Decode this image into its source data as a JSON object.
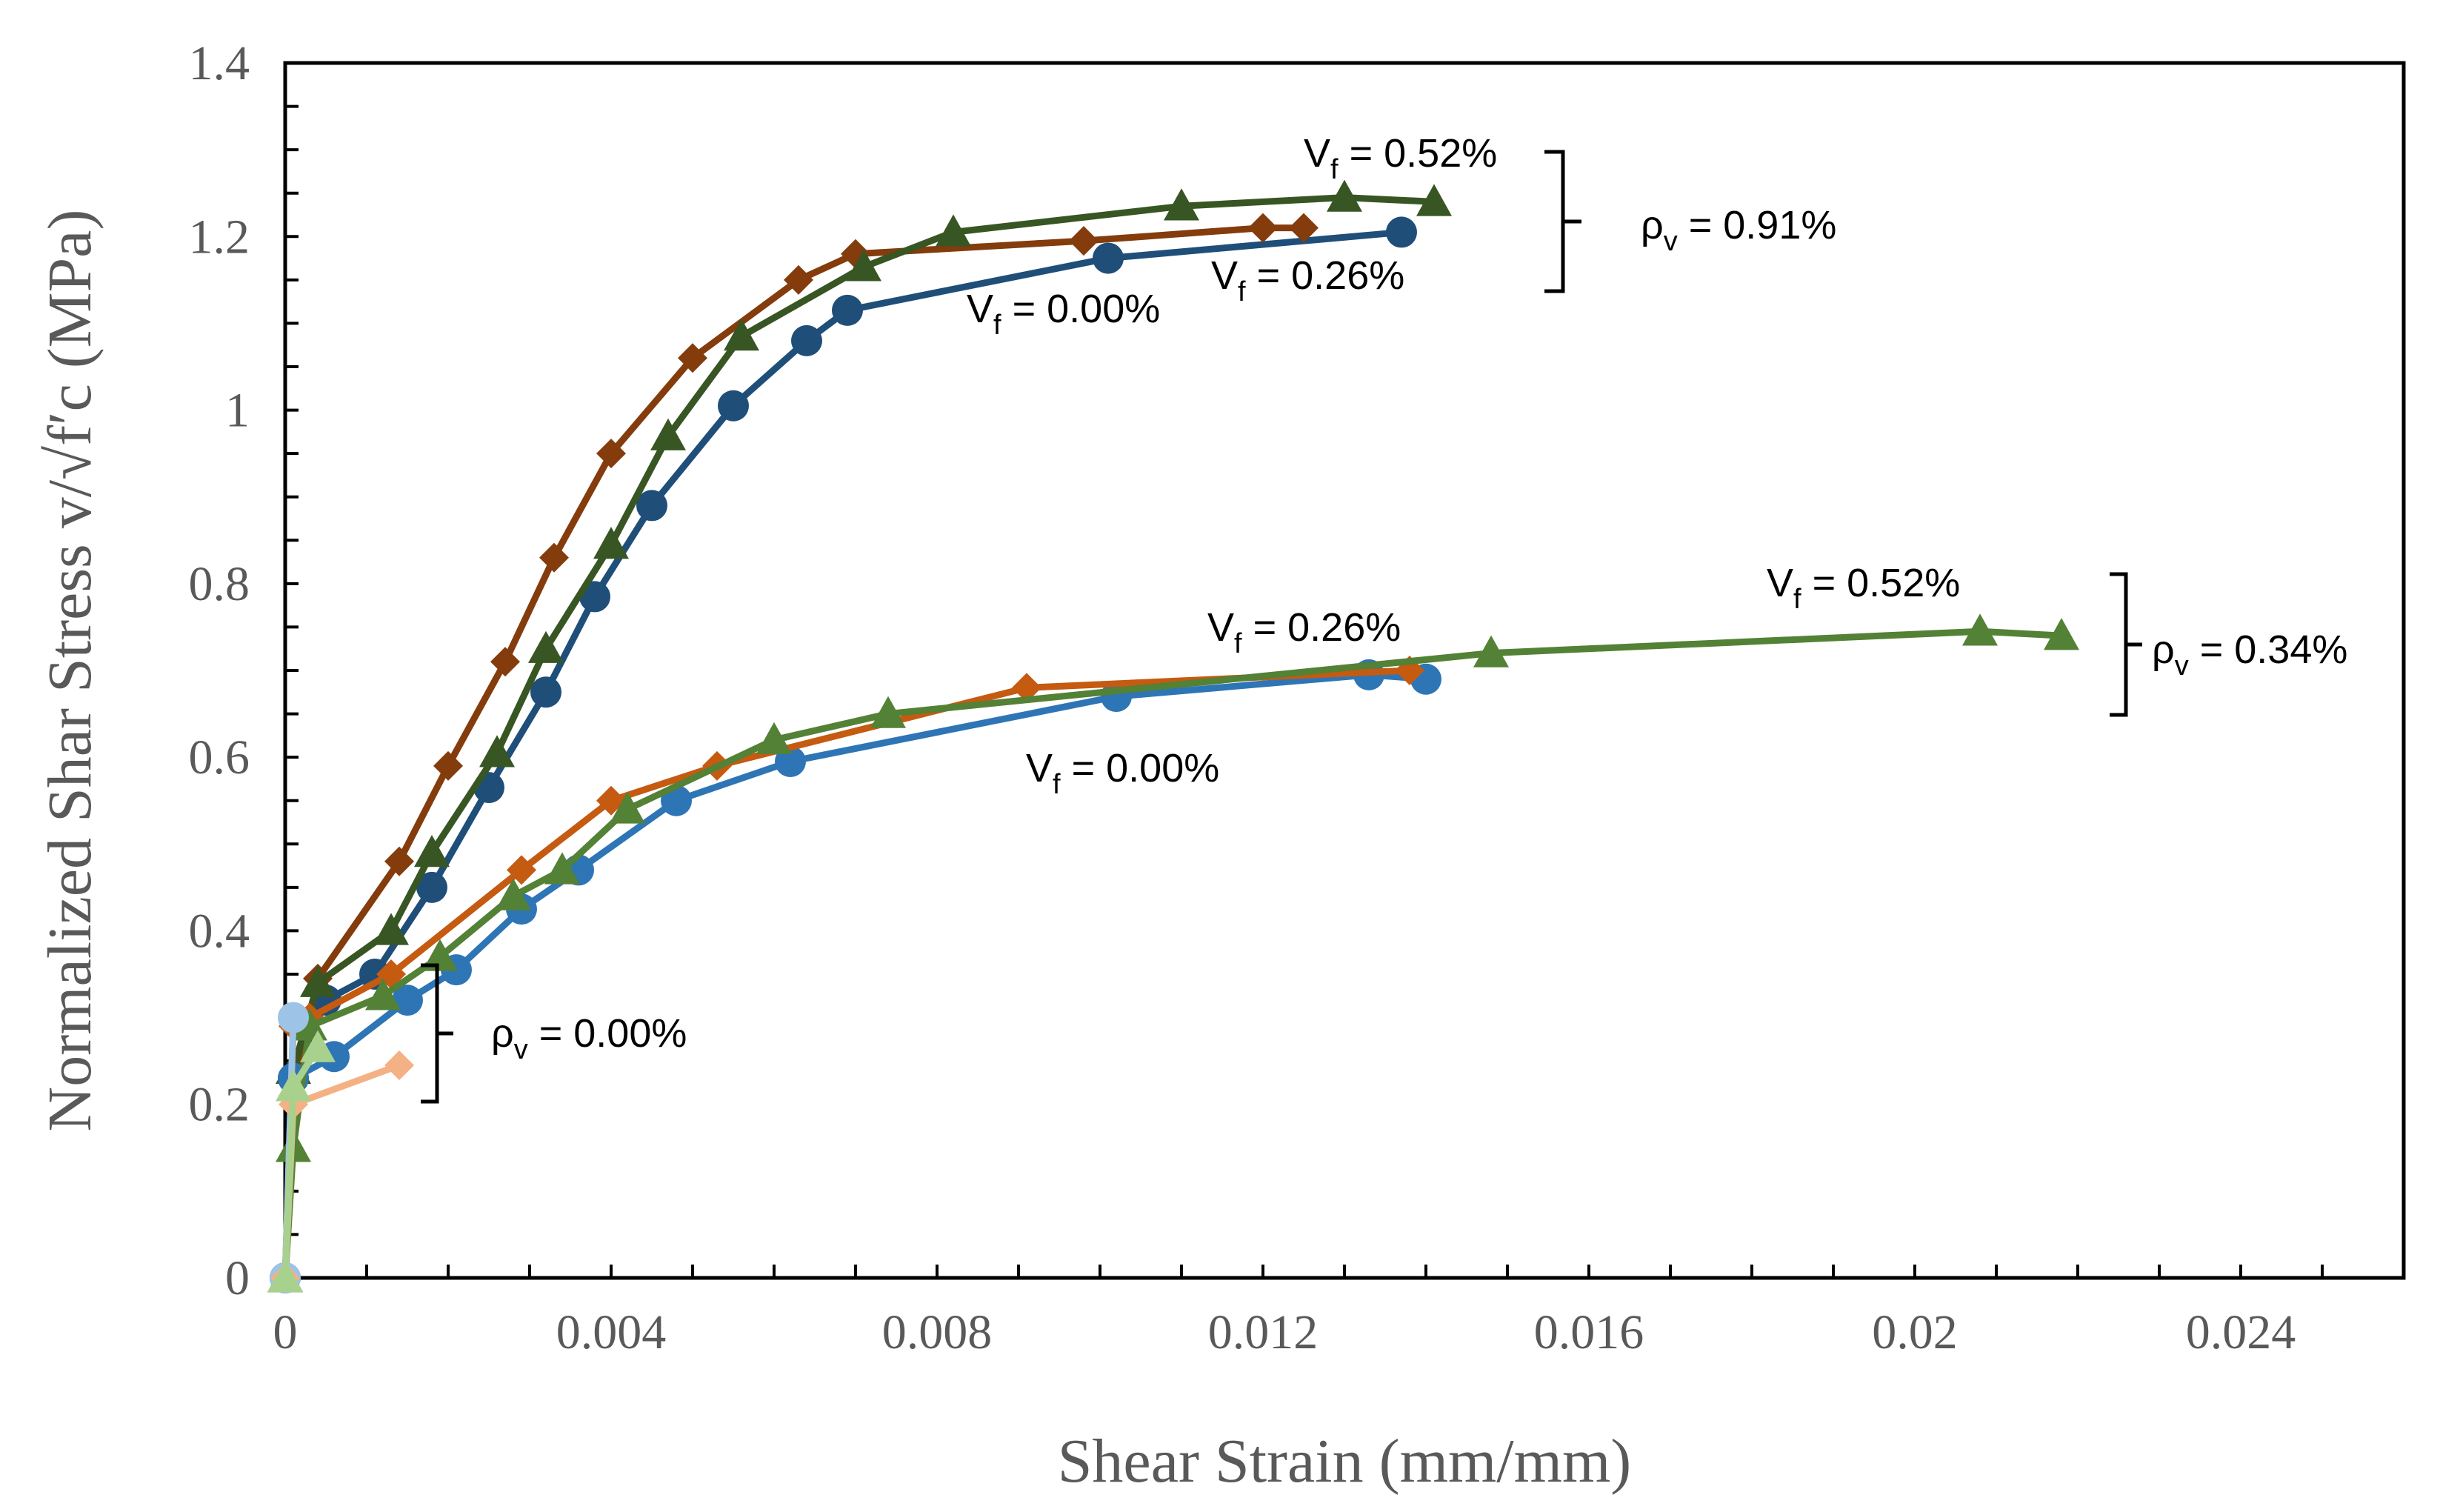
{
  "chart_data": {
    "type": "line",
    "xlabel": "Shear Strain (mm/mm)",
    "ylabel": "Normalized Shar Stress v/√f′c (MPa)",
    "xlim": [
      0,
      0.026
    ],
    "ylim": [
      0,
      1.4
    ],
    "xticks": [
      "0",
      "0.004",
      "0.008",
      "0.012",
      "0.016",
      "0.02",
      "0.024"
    ],
    "yticks": [
      "0",
      "0.2",
      "0.4",
      "0.6",
      "0.8",
      "1",
      "1.2",
      "1.4"
    ],
    "grid": false,
    "legend": "none",
    "series": [
      {
        "rho_v": "0.91%",
        "vf": "0.00%",
        "marker": "circle",
        "color": "#1F4E79",
        "x": [
          0,
          0.0001,
          0.0005,
          0.0011,
          0.0018,
          0.0025,
          0.0032,
          0.0038,
          0.0045,
          0.0055,
          0.0064,
          0.0069,
          0.0101,
          0.0137
        ],
        "y": [
          0,
          0.23,
          0.32,
          0.35,
          0.45,
          0.565,
          0.675,
          0.785,
          0.89,
          1.005,
          1.08,
          1.115,
          1.175,
          1.205
        ]
      },
      {
        "rho_v": "0.91%",
        "vf": "0.26%",
        "marker": "diamond",
        "color": "#843C0C",
        "x": [
          0,
          0.0001,
          0.0004,
          0.0014,
          0.002,
          0.0027,
          0.0033,
          0.004,
          0.005,
          0.0063,
          0.007,
          0.0098,
          0.012,
          0.0125
        ],
        "y": [
          0,
          0.21,
          0.345,
          0.48,
          0.59,
          0.71,
          0.83,
          0.95,
          1.06,
          1.15,
          1.18,
          1.195,
          1.21,
          1.21
        ]
      },
      {
        "rho_v": "0.91%",
        "vf": "0.52%",
        "marker": "triangle",
        "color": "#375623",
        "x": [
          0,
          0.0001,
          0.0004,
          0.0013,
          0.0018,
          0.0026,
          0.0032,
          0.004,
          0.0047,
          0.0056,
          0.0071,
          0.0082,
          0.011,
          0.013,
          0.0141
        ],
        "y": [
          0,
          0.24,
          0.34,
          0.4,
          0.49,
          0.605,
          0.725,
          0.845,
          0.97,
          1.085,
          1.165,
          1.205,
          1.235,
          1.245,
          1.24
        ]
      },
      {
        "rho_v": "0.34%",
        "vf": "0.00%",
        "marker": "circle",
        "color": "#2E75B6",
        "x": [
          0,
          0.0001,
          0.0006,
          0.0015,
          0.0021,
          0.0029,
          0.0036,
          0.0048,
          0.0062,
          0.0102,
          0.0133,
          0.014
        ],
        "y": [
          0,
          0.23,
          0.255,
          0.32,
          0.355,
          0.425,
          0.47,
          0.55,
          0.595,
          0.67,
          0.695,
          0.69
        ]
      },
      {
        "rho_v": "0.34%",
        "vf": "0.26%",
        "marker": "diamond",
        "color": "#C55A11",
        "x": [
          0,
          0.0001,
          0.0003,
          0.0013,
          0.0029,
          0.004,
          0.0053,
          0.0091,
          0.0138
        ],
        "y": [
          0,
          0.29,
          0.3,
          0.35,
          0.47,
          0.55,
          0.59,
          0.68,
          0.7
        ]
      },
      {
        "rho_v": "0.34%",
        "vf": "0.52%",
        "marker": "triangle",
        "color": "#538135",
        "x": [
          0,
          0.0001,
          0.0003,
          0.0012,
          0.0019,
          0.0028,
          0.0034,
          0.0042,
          0.006,
          0.0074,
          0.0148,
          0.0208,
          0.0218
        ],
        "y": [
          0,
          0.15,
          0.29,
          0.325,
          0.37,
          0.44,
          0.47,
          0.54,
          0.62,
          0.65,
          0.72,
          0.745,
          0.74
        ]
      },
      {
        "rho_v": "0.00%",
        "vf": "0.00%",
        "marker": "circle",
        "color": "#9DC3E6",
        "x": [
          0,
          0.0001
        ],
        "y": [
          0,
          0.3
        ]
      },
      {
        "rho_v": "0.00%",
        "vf": "0.26%",
        "marker": "diamond",
        "color": "#F4B183",
        "x": [
          0,
          0.0001,
          0.0014
        ],
        "y": [
          0,
          0.2,
          0.245
        ]
      },
      {
        "rho_v": "0.00%",
        "vf": "0.52%",
        "marker": "triangle",
        "color": "#A9D18E",
        "x": [
          0,
          0.0001,
          0.0004
        ],
        "y": [
          0,
          0.22,
          0.265
        ]
      }
    ],
    "annotations": [
      {
        "main": "V",
        "sub": "f",
        "rest": " = 0.52%"
      },
      {
        "main": "V",
        "sub": "f",
        "rest": " = 0.26%"
      },
      {
        "main": "V",
        "sub": "f",
        "rest": " = 0.00%"
      },
      {
        "main": "ρ",
        "sub": "v",
        "rest": " = 0.91%"
      },
      {
        "main": "V",
        "sub": "f",
        "rest": " = 0.52%"
      },
      {
        "main": "V",
        "sub": "f",
        "rest": " = 0.26%"
      },
      {
        "main": "V",
        "sub": "f",
        "rest": " = 0.00%"
      },
      {
        "main": "ρ",
        "sub": "v",
        "rest": " = 0.34%"
      },
      {
        "main": "ρ",
        "sub": "v",
        "rest": " = 0.00%"
      }
    ]
  }
}
